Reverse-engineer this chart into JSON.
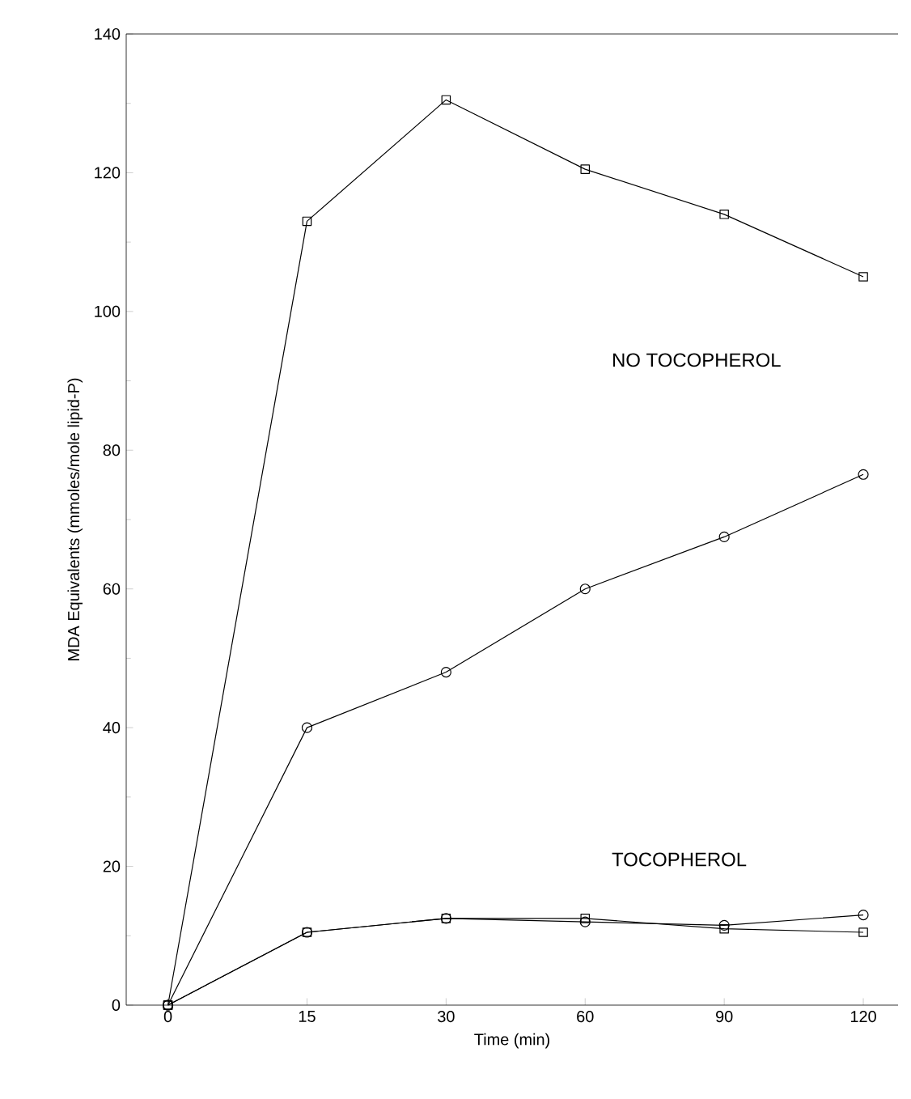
{
  "chart_data": {
    "type": "line",
    "xlabel": "Time (min)",
    "ylabel": "MDA Equivalents (mmoles/mole lipid-P)",
    "categories": [
      "0",
      "15",
      "30",
      "60",
      "90",
      "120"
    ],
    "ylim": [
      0,
      140
    ],
    "yticks": [
      0,
      20,
      40,
      60,
      80,
      100,
      120,
      140
    ],
    "series": [
      {
        "color": "#000000",
        "marker": "square",
        "values": [
          0,
          113,
          130.5,
          120.5,
          114,
          105
        ]
      },
      {
        "color": "#000000",
        "marker": "circle",
        "values": [
          0,
          40,
          48,
          60,
          67.5,
          76.5
        ]
      },
      {
        "color": "#000000",
        "marker": "circle",
        "values": [
          0,
          10.5,
          12.5,
          12,
          11.5,
          13
        ]
      },
      {
        "color": "#000000",
        "marker": "square",
        "values": [
          0,
          10.5,
          12.5,
          12.5,
          11,
          10.5
        ]
      }
    ],
    "annotations": [
      "NO TOCOPHEROL",
      "TOCOPHEROL"
    ],
    "line_style": "solid"
  }
}
